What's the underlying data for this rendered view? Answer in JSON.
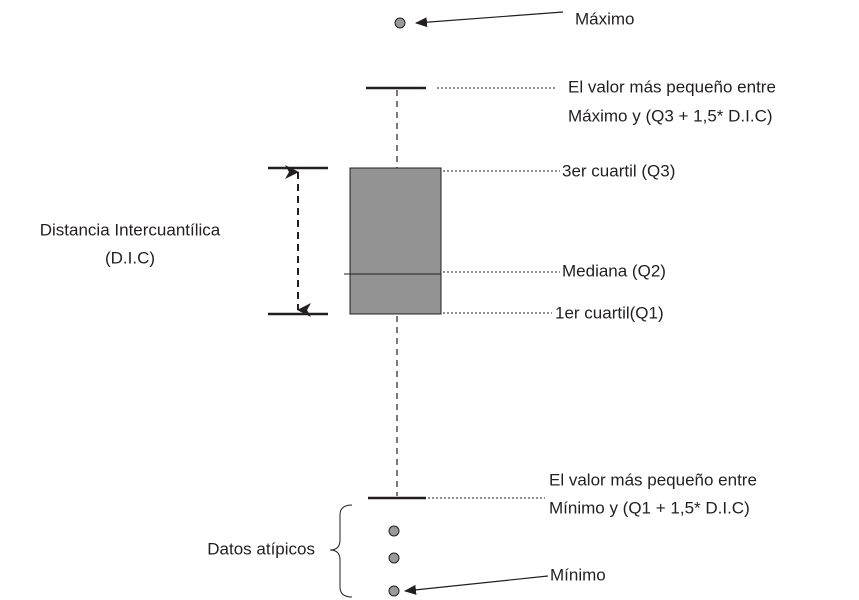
{
  "labels": {
    "maximum": "Máximo",
    "upper_whisker_line1": "El valor más pequeño entre",
    "upper_whisker_line2": "Máximo y (Q3 + 1,5* D.I.C)",
    "q3": "3er cuartil (Q3)",
    "median": "Mediana (Q2)",
    "q1": "1er cuartil(Q1)",
    "iqr_line1": "Distancia Intercuantílica",
    "iqr_line2": "(D.I.C)",
    "lower_whisker_line1": "El valor más pequeño entre",
    "lower_whisker_line2": "Mínimo y (Q1 + 1,5* D.I.C)",
    "outliers": "Datos atípicos",
    "minimum": "Mínimo"
  }
}
